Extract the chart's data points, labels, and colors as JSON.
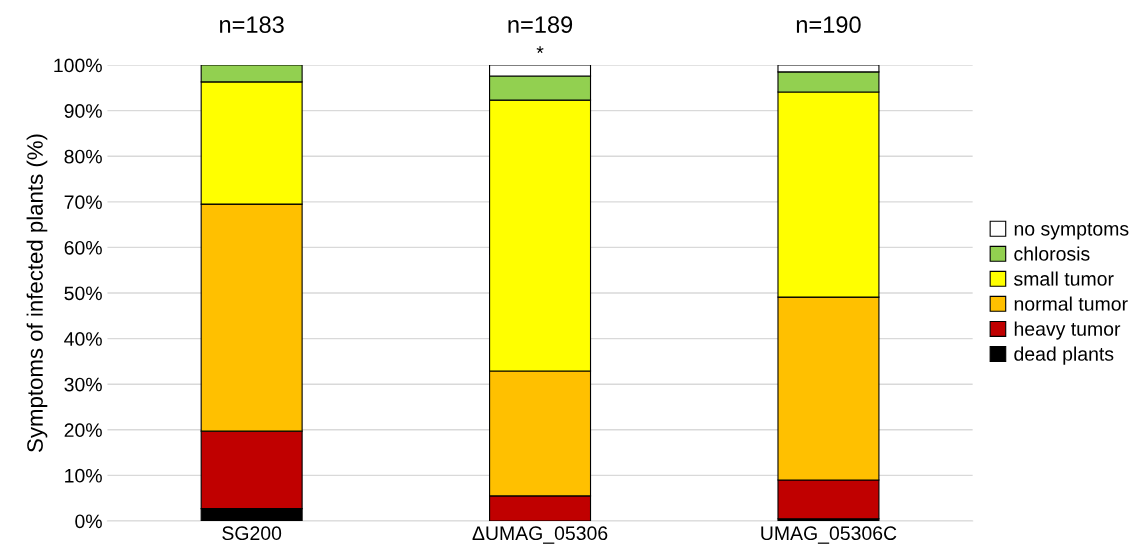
{
  "chart_data": {
    "type": "bar",
    "stacked": true,
    "ylabel": "Symptoms of infected plants (%)",
    "categories": [
      "SG200",
      "ΔUMAG_05306",
      "UMAG_05306C"
    ],
    "series": [
      {
        "name": "dead plants",
        "color": "#000000",
        "values": [
          2.7,
          0,
          0.5
        ]
      },
      {
        "name": "heavy tumor",
        "color": "#c00000",
        "values": [
          17.0,
          5.5,
          8.5
        ]
      },
      {
        "name": "normal tumor",
        "color": "#ffc000",
        "values": [
          49.8,
          27.4,
          40.1
        ]
      },
      {
        "name": "small tumor",
        "color": "#ffff00",
        "values": [
          26.8,
          59.4,
          45.0
        ]
      },
      {
        "name": "chlorosis",
        "color": "#92d050",
        "values": [
          3.7,
          5.3,
          4.4
        ]
      },
      {
        "name": "no symptoms",
        "color": "#ffffff",
        "values": [
          0,
          2.4,
          1.5
        ]
      }
    ],
    "ylim": [
      0,
      100
    ],
    "yticks": [
      {
        "value": 0,
        "label": "0%"
      },
      {
        "value": 10,
        "label": "10%"
      },
      {
        "value": 20,
        "label": "20%"
      },
      {
        "value": 30,
        "label": "30%"
      },
      {
        "value": 40,
        "label": "40%"
      },
      {
        "value": 50,
        "label": "50%"
      },
      {
        "value": 60,
        "label": "60%"
      },
      {
        "value": 70,
        "label": "70%"
      },
      {
        "value": 80,
        "label": "80%"
      },
      {
        "value": 90,
        "label": "90%"
      },
      {
        "value": 100,
        "label": "100%"
      }
    ],
    "grid": "y",
    "legend": "right",
    "annotations": [
      "n=183",
      "n=189",
      "n=190",
      {
        "text": "*",
        "x": "ΔUMAG_05306",
        "y": 100
      }
    ]
  }
}
